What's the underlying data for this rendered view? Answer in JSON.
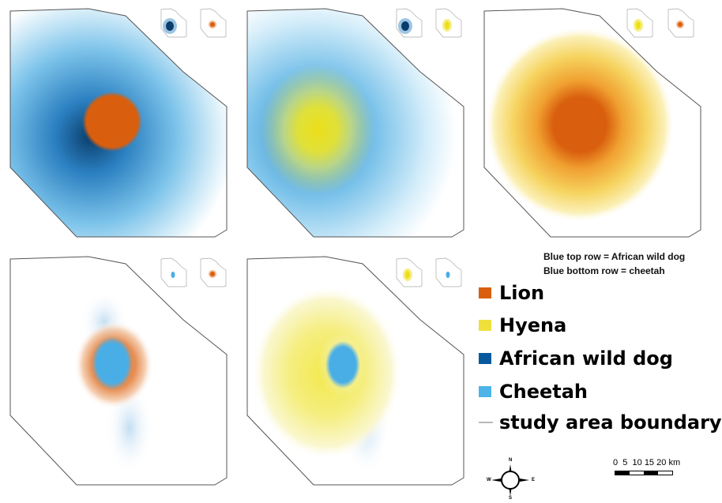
{
  "notes": {
    "line1": "Blue top row = African wild dog",
    "line2": "Blue bottom row = cheetah"
  },
  "legend": [
    {
      "label": "Lion",
      "color": "#d95f0e"
    },
    {
      "label": "Hyena",
      "color": "#f0e03c"
    },
    {
      "label": "African wild dog",
      "color": "#08589e"
    },
    {
      "label": "Cheetah",
      "color": "#4eb3e8"
    }
  ],
  "boundary_label": "study area boundary",
  "boundary_color": "#b8b8b8",
  "scale": {
    "labels": [
      "0",
      "5",
      "10",
      "15",
      "20"
    ],
    "unit": "km"
  },
  "compass": {
    "n": "N",
    "s": "S",
    "e": "E",
    "w": "W"
  },
  "panels": [
    {
      "row": "top",
      "layers": [
        "African wild dog",
        "Lion"
      ]
    },
    {
      "row": "top",
      "layers": [
        "African wild dog",
        "Hyena"
      ]
    },
    {
      "row": "top",
      "layers": [
        "Hyena",
        "Lion"
      ]
    },
    {
      "row": "bottom",
      "layers": [
        "Cheetah",
        "Lion"
      ]
    },
    {
      "row": "bottom",
      "layers": [
        "Cheetah",
        "Hyena"
      ]
    }
  ]
}
